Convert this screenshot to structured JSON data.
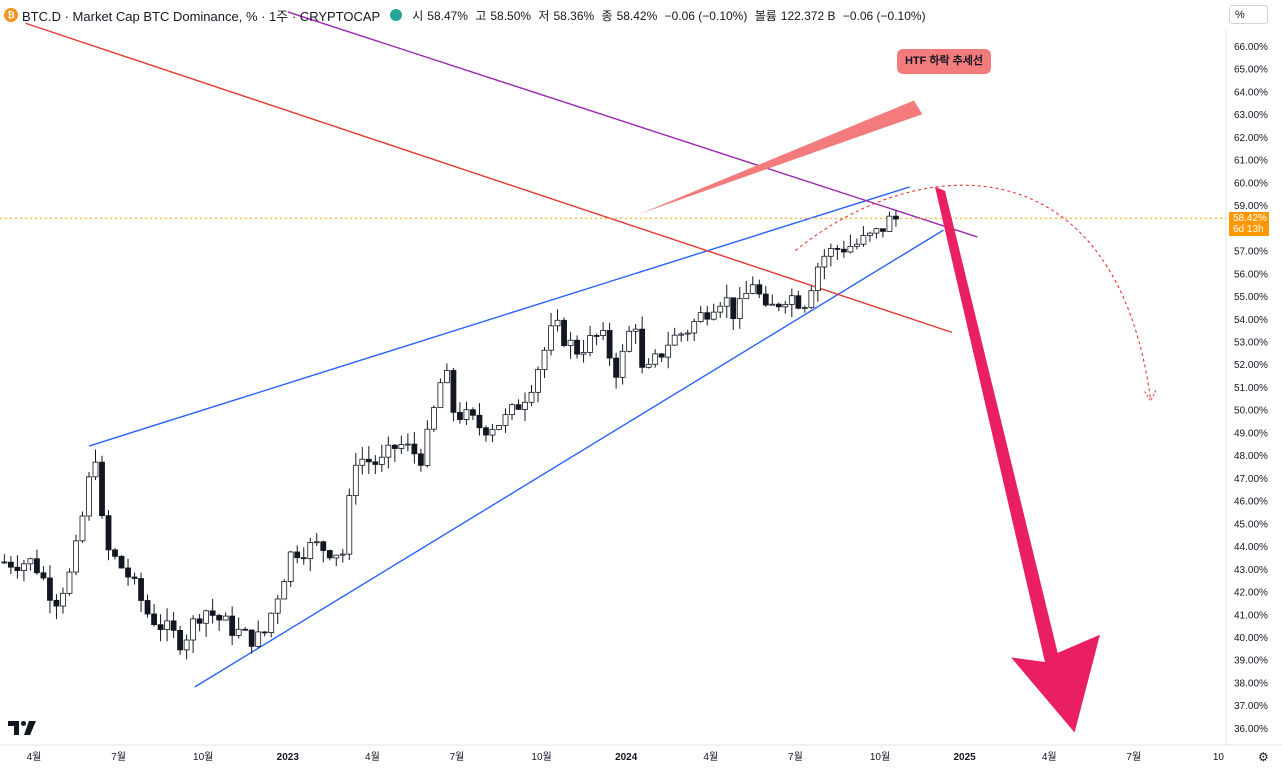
{
  "header": {
    "symbol_title": "BTC.D · Market Cap BTC Dominance, % · 1주 · CRYPTOCAP",
    "coin_icon": "bitcoin-icon",
    "status_color": "#26a69a",
    "open_label": "시",
    "open_value": "58.47%",
    "high_label": "고",
    "high_value": "58.50%",
    "low_label": "저",
    "low_value": "58.36%",
    "close_label": "종",
    "close_value": "58.42%",
    "change": "−0.06 (−0.10%)",
    "volume_label": "볼륨",
    "volume_value": "122.372 B",
    "volume_change": "−0.06 (−0.10%)"
  },
  "scale_unit": "%",
  "last_price": {
    "value": "58.42%",
    "countdown": "6d 13h",
    "color": "#ff9800"
  },
  "annotation": {
    "label": "HTF 하락 추세선",
    "color": "#f47b7b"
  },
  "chart_data": {
    "type": "candlestick",
    "y_axis": {
      "min": 35.5,
      "max": 66.5,
      "position": "right",
      "ticks": [
        "66.00%",
        "65.00%",
        "64.00%",
        "63.00%",
        "62.00%",
        "61.00%",
        "60.00%",
        "59.00%",
        "58.00%",
        "57.00%",
        "56.00%",
        "55.00%",
        "54.00%",
        "53.00%",
        "52.00%",
        "51.00%",
        "50.00%",
        "49.00%",
        "48.00%",
        "47.00%",
        "46.00%",
        "45.00%",
        "44.00%",
        "43.00%",
        "42.00%",
        "41.00%",
        "40.00%",
        "39.00%",
        "38.00%",
        "37.00%",
        "36.00%"
      ]
    },
    "x_axis": {
      "ticks": [
        {
          "label": "4월",
          "t": 0.0
        },
        {
          "label": "7월",
          "t": 1.0
        },
        {
          "label": "10월",
          "t": 2.0
        },
        {
          "label": "2023",
          "t": 3.0,
          "bold": true
        },
        {
          "label": "4월",
          "t": 4.0
        },
        {
          "label": "7월",
          "t": 5.0
        },
        {
          "label": "10월",
          "t": 6.0
        },
        {
          "label": "2024",
          "t": 7.0,
          "bold": true
        },
        {
          "label": "4월",
          "t": 8.0
        },
        {
          "label": "7월",
          "t": 9.0
        },
        {
          "label": "10월",
          "t": 10.0
        },
        {
          "label": "2025",
          "t": 11.0,
          "bold": true
        },
        {
          "label": "4월",
          "t": 12.0
        },
        {
          "label": "7월",
          "t": 13.0
        },
        {
          "label": "10",
          "t": 14.0
        }
      ]
    },
    "anchors": [
      {
        "x": 0,
        "y": 43.3
      },
      {
        "x": 0.25,
        "y": 41.6
      },
      {
        "x": 0.45,
        "y": 42.9
      },
      {
        "x": 0.6,
        "y": 45.8
      },
      {
        "x": 0.7,
        "y": 47.8
      },
      {
        "x": 0.75,
        "y": 48.3
      },
      {
        "x": 0.82,
        "y": 44.0
      },
      {
        "x": 1.1,
        "y": 42.8
      },
      {
        "x": 1.35,
        "y": 41.0
      },
      {
        "x": 1.6,
        "y": 40.2
      },
      {
        "x": 1.75,
        "y": 39.8
      },
      {
        "x": 2.0,
        "y": 41.3
      },
      {
        "x": 2.25,
        "y": 40.6
      },
      {
        "x": 2.5,
        "y": 40.0
      },
      {
        "x": 2.7,
        "y": 39.9
      },
      {
        "x": 3.05,
        "y": 43.8
      },
      {
        "x": 3.35,
        "y": 44.0
      },
      {
        "x": 3.65,
        "y": 43.7
      },
      {
        "x": 3.8,
        "y": 47.9
      },
      {
        "x": 4.1,
        "y": 47.6
      },
      {
        "x": 4.3,
        "y": 48.5
      },
      {
        "x": 4.6,
        "y": 47.9
      },
      {
        "x": 4.85,
        "y": 51.9
      },
      {
        "x": 4.95,
        "y": 50.0
      },
      {
        "x": 5.3,
        "y": 49.2
      },
      {
        "x": 5.6,
        "y": 49.6
      },
      {
        "x": 5.85,
        "y": 50.9
      },
      {
        "x": 6.15,
        "y": 53.7
      },
      {
        "x": 6.4,
        "y": 52.6
      },
      {
        "x": 6.7,
        "y": 53.3
      },
      {
        "x": 6.9,
        "y": 51.6
      },
      {
        "x": 7.1,
        "y": 54.2
      },
      {
        "x": 7.2,
        "y": 51.3
      },
      {
        "x": 7.5,
        "y": 53.0
      },
      {
        "x": 7.75,
        "y": 53.6
      },
      {
        "x": 8.05,
        "y": 54.8
      },
      {
        "x": 8.15,
        "y": 55.0
      },
      {
        "x": 8.3,
        "y": 54.1
      },
      {
        "x": 8.5,
        "y": 55.7
      },
      {
        "x": 8.65,
        "y": 54.2
      },
      {
        "x": 8.9,
        "y": 55.1
      },
      {
        "x": 9.1,
        "y": 54.7
      },
      {
        "x": 9.3,
        "y": 56.7
      },
      {
        "x": 9.5,
        "y": 57.1
      },
      {
        "x": 9.75,
        "y": 57.3
      },
      {
        "x": 9.95,
        "y": 57.7
      },
      {
        "x": 10.1,
        "y": 58.3
      },
      {
        "x": 10.2,
        "y": 58.4
      }
    ],
    "trendlines": [
      {
        "name": "wedge-upper",
        "color": "#2962ff",
        "from": [
          0.65,
          48.4
        ],
        "to": [
          10.35,
          59.8
        ]
      },
      {
        "name": "wedge-lower",
        "color": "#2962ff",
        "from": [
          1.9,
          37.8
        ],
        "to": [
          10.75,
          57.9
        ]
      },
      {
        "name": "htf-red",
        "color": "#e53935",
        "from": [
          -0.1,
          67.0
        ],
        "to": [
          10.85,
          53.4
        ]
      },
      {
        "name": "htf-purple",
        "color": "#9c27b0",
        "from": [
          3.0,
          67.5
        ],
        "to": [
          11.15,
          57.6
        ]
      }
    ]
  }
}
